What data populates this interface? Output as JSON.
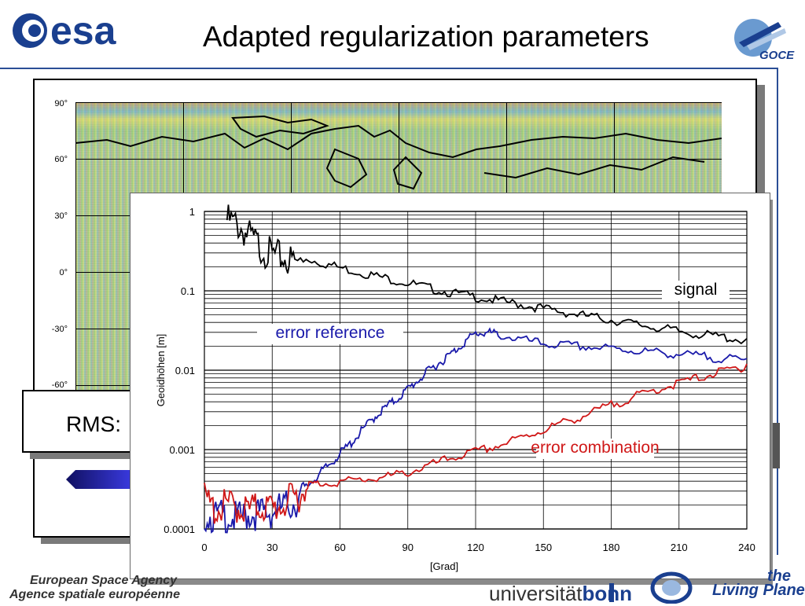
{
  "header": {
    "esa_logo_text": "esa",
    "title": "Adapted regularization parameters",
    "goce_logo_text": "GOCE"
  },
  "map": {
    "lat_labels": [
      "90°",
      "60°",
      "30°",
      "0°",
      "-30°",
      "-60°"
    ]
  },
  "rms": {
    "label": "RMS:"
  },
  "chart_data": {
    "type": "line",
    "xlabel": "[Grad]",
    "ylabel": "Geoidhöhen [m]",
    "xlim": [
      0,
      240
    ],
    "ylim": [
      0.0001,
      1
    ],
    "yscale": "log",
    "x_ticks": [
      "0",
      "30",
      "60",
      "90",
      "120",
      "150",
      "180",
      "210",
      "240"
    ],
    "y_ticks": [
      "1",
      "0.1",
      "0.01",
      "0.001",
      "0.0001"
    ],
    "grid": true,
    "series": [
      {
        "name": "signal",
        "color": "#000000",
        "points": [
          [
            10,
            1.0
          ],
          [
            15,
            0.85
          ],
          [
            20,
            0.62
          ],
          [
            25,
            0.45
          ],
          [
            30,
            0.36
          ],
          [
            35,
            0.33
          ],
          [
            40,
            0.3
          ],
          [
            50,
            0.25
          ],
          [
            60,
            0.21
          ],
          [
            70,
            0.18
          ],
          [
            80,
            0.155
          ],
          [
            90,
            0.135
          ],
          [
            100,
            0.115
          ],
          [
            110,
            0.1
          ],
          [
            120,
            0.09
          ],
          [
            130,
            0.08
          ],
          [
            140,
            0.072
          ],
          [
            150,
            0.064
          ],
          [
            160,
            0.057
          ],
          [
            170,
            0.051
          ],
          [
            180,
            0.046
          ],
          [
            190,
            0.041
          ],
          [
            200,
            0.037
          ],
          [
            210,
            0.033
          ],
          [
            220,
            0.03
          ],
          [
            230,
            0.028
          ],
          [
            240,
            0.025
          ]
        ]
      },
      {
        "name": "error reference",
        "color": "#1a1aaa",
        "points": [
          [
            0,
            0.0002
          ],
          [
            5,
            0.00018
          ],
          [
            10,
            0.00019
          ],
          [
            15,
            0.00017
          ],
          [
            20,
            0.0002
          ],
          [
            25,
            0.0002
          ],
          [
            30,
            0.00021
          ],
          [
            35,
            0.00024
          ],
          [
            40,
            0.00028
          ],
          [
            45,
            0.00036
          ],
          [
            50,
            0.0005
          ],
          [
            55,
            0.00068
          ],
          [
            60,
            0.00095
          ],
          [
            65,
            0.0013
          ],
          [
            70,
            0.0019
          ],
          [
            75,
            0.0027
          ],
          [
            80,
            0.0036
          ],
          [
            85,
            0.0046
          ],
          [
            90,
            0.0062
          ],
          [
            95,
            0.0082
          ],
          [
            100,
            0.011
          ],
          [
            105,
            0.014
          ],
          [
            110,
            0.018
          ],
          [
            115,
            0.024
          ],
          [
            120,
            0.031
          ],
          [
            125,
            0.032
          ],
          [
            130,
            0.03
          ],
          [
            140,
            0.026
          ],
          [
            150,
            0.023
          ],
          [
            160,
            0.022
          ],
          [
            170,
            0.021
          ],
          [
            180,
            0.02
          ],
          [
            190,
            0.019
          ],
          [
            200,
            0.018
          ],
          [
            210,
            0.017
          ],
          [
            220,
            0.016
          ],
          [
            230,
            0.015
          ],
          [
            240,
            0.014
          ]
        ]
      },
      {
        "name": "error combination",
        "color": "#d01818",
        "points": [
          [
            0,
            0.0003
          ],
          [
            5,
            0.00022
          ],
          [
            10,
            0.00026
          ],
          [
            15,
            0.00024
          ],
          [
            20,
            0.00022
          ],
          [
            25,
            0.00025
          ],
          [
            30,
            0.00023
          ],
          [
            35,
            0.00026
          ],
          [
            40,
            0.00032
          ],
          [
            45,
            0.00038
          ],
          [
            50,
            0.0004
          ],
          [
            60,
            0.00042
          ],
          [
            70,
            0.00045
          ],
          [
            80,
            0.00048
          ],
          [
            90,
            0.00055
          ],
          [
            100,
            0.00068
          ],
          [
            110,
            0.00085
          ],
          [
            120,
            0.001
          ],
          [
            130,
            0.0012
          ],
          [
            140,
            0.0015
          ],
          [
            150,
            0.0019
          ],
          [
            160,
            0.0024
          ],
          [
            170,
            0.003
          ],
          [
            180,
            0.0039
          ],
          [
            190,
            0.0049
          ],
          [
            200,
            0.0061
          ],
          [
            210,
            0.0074
          ],
          [
            220,
            0.0088
          ],
          [
            230,
            0.0105
          ],
          [
            240,
            0.012
          ]
        ]
      }
    ],
    "annotations": [
      {
        "text": "signal",
        "color": "#000000"
      },
      {
        "text": "error reference",
        "color": "#1a1aaa"
      },
      {
        "text": "error combination",
        "color": "#d01818"
      }
    ]
  },
  "footer": {
    "esa_line1": "European Space Agency",
    "esa_line2": "Agence spatiale européenne",
    "uni_text": "universität",
    "uni_bold": "bonn",
    "living1": "the",
    "living2": "Living Planet"
  }
}
